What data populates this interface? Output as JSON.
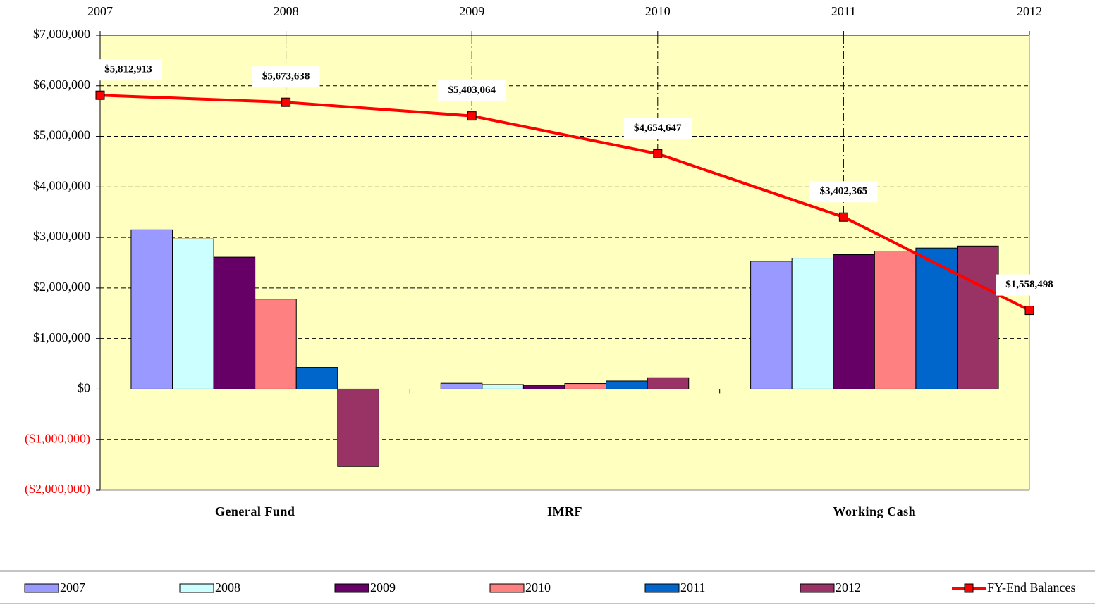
{
  "chart_data": {
    "type": "bar",
    "categories": [
      "General Fund",
      "IMRF",
      "Working Cash"
    ],
    "series": [
      {
        "name": "2007",
        "color": "#9999ff",
        "values": [
          3150000,
          115000,
          2530000
        ]
      },
      {
        "name": "2008",
        "color": "#ccffff",
        "values": [
          2970000,
          90000,
          2590000
        ]
      },
      {
        "name": "2009",
        "color": "#660066",
        "values": [
          2610000,
          80000,
          2660000
        ]
      },
      {
        "name": "2010",
        "color": "#ff8080",
        "values": [
          1780000,
          110000,
          2730000
        ]
      },
      {
        "name": "2011",
        "color": "#0066cc",
        "values": [
          430000,
          160000,
          2790000
        ]
      },
      {
        "name": "2012",
        "color": "#993366",
        "values": [
          -1530000,
          225000,
          2830000
        ]
      }
    ],
    "line_series": {
      "type": "line",
      "axis": "x2",
      "name": "FY-End Balances",
      "color": "#ff0000",
      "x": [
        2007,
        2008,
        2009,
        2010,
        2011,
        2012
      ],
      "values": [
        5812913,
        5673638,
        5403064,
        4654647,
        3402365,
        1558498
      ],
      "value_labels": [
        "$5,812,913",
        "$5,673,638",
        "$5,403,064",
        "$4,654,647",
        "$3,402,365",
        "$1,558,498"
      ]
    },
    "ylim": [
      -2000000,
      7000000
    ],
    "yticks": [
      {
        "value": -2000000,
        "label": "($2,000,000)"
      },
      {
        "value": -1000000,
        "label": "($1,000,000)"
      },
      {
        "value": 0,
        "label": "$0"
      },
      {
        "value": 1000000,
        "label": "$1,000,000"
      },
      {
        "value": 2000000,
        "label": "$2,000,000"
      },
      {
        "value": 3000000,
        "label": "$3,000,000"
      },
      {
        "value": 4000000,
        "label": "$4,000,000"
      },
      {
        "value": 5000000,
        "label": "$5,000,000"
      },
      {
        "value": 6000000,
        "label": "$6,000,000"
      },
      {
        "value": 7000000,
        "label": "$7,000,000"
      }
    ],
    "x2lim": [
      2007,
      2012
    ],
    "x2ticks": [
      2007,
      2008,
      2009,
      2010,
      2011,
      2012
    ],
    "grid": true,
    "legend": "bottom"
  }
}
